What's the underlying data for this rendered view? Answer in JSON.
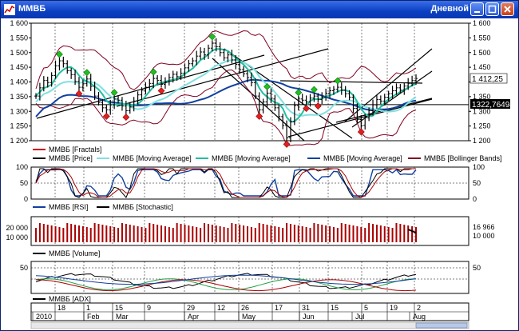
{
  "window": {
    "title": "ММВБ",
    "mode": "Дневной",
    "buttons": [
      "minimize",
      "maximize",
      "close"
    ]
  },
  "chart_data": [
    {
      "type": "line",
      "panel": "price",
      "ylim": [
        1200,
        1600
      ],
      "yticks": [
        "1 200",
        "1 250",
        "1 300",
        "1 350",
        "1 400",
        "1 450",
        "1 500",
        "1 550",
        "1 600"
      ],
      "last_price_label": "1 412,25",
      "level_label": "1322,76494",
      "level_value": 1322.76,
      "price": [
        1352,
        1380,
        1405,
        1398,
        1422,
        1455,
        1472,
        1462,
        1438,
        1425,
        1402,
        1382,
        1395,
        1410,
        1385,
        1352,
        1330,
        1312,
        1305,
        1322,
        1342,
        1338,
        1318,
        1302,
        1315,
        1335,
        1356,
        1372,
        1382,
        1395,
        1412,
        1405,
        1392,
        1400,
        1415,
        1426,
        1418,
        1430,
        1448,
        1462,
        1472,
        1488,
        1502,
        1492,
        1515,
        1532,
        1520,
        1500,
        1482,
        1492,
        1475,
        1460,
        1442,
        1428,
        1415,
        1398,
        1352,
        1305,
        1332,
        1362,
        1342,
        1312,
        1282,
        1252,
        1210,
        1265,
        1320,
        1342,
        1338,
        1332,
        1345,
        1352,
        1340,
        1348,
        1362,
        1370,
        1375,
        1382,
        1372,
        1360,
        1348,
        1310,
        1272,
        1252,
        1278,
        1302,
        1322,
        1340,
        1335,
        1348,
        1360,
        1370,
        1380,
        1372,
        1386,
        1395,
        1405,
        1412
      ],
      "series": [
        {
          "name": "ММВБ [Fractals]",
          "color": "#cc0000"
        },
        {
          "name": "ММВБ [Price]",
          "color": "#000000"
        },
        {
          "name": "ММВБ [Moving Average]",
          "color": "#80e0e0"
        },
        {
          "name": "ММВБ [Moving Average]",
          "color": "#20c0a0"
        },
        {
          "name": "ММВБ [Moving Average]",
          "color": "#1040a0"
        },
        {
          "name": "ММВБ [Bollinger Bands]",
          "color": "#800020"
        }
      ]
    },
    {
      "type": "line",
      "panel": "oscillators",
      "ylim": [
        0,
        100
      ],
      "yticks": [
        "0",
        "50",
        "100"
      ],
      "series": [
        {
          "name": "ММВБ [RSI]",
          "color": "#1040a0"
        },
        {
          "name": "ММВБ [Stochastic]",
          "color": "#000000"
        }
      ]
    },
    {
      "type": "bar",
      "panel": "volume",
      "yticks": [
        "10 000",
        "20 000"
      ],
      "last_value_label": "16 966",
      "right_axis_label": "10 000",
      "series": [
        {
          "name": "ММВБ [Volume]",
          "color": "#aa0000"
        }
      ]
    },
    {
      "type": "line",
      "panel": "adx",
      "yticks": [
        "50"
      ],
      "series": [
        {
          "name": "ММВБ [ADX]",
          "color": "#000000"
        }
      ]
    }
  ],
  "x_axis": {
    "days": [
      "18",
      "1",
      "15",
      "9",
      "29",
      "12",
      "26",
      "17",
      "31",
      "15",
      "5",
      "19",
      "2"
    ],
    "months": [
      "2010",
      "Feb",
      "Mar",
      "Apr",
      "May",
      "Jun",
      "Jul",
      "Aug"
    ]
  }
}
